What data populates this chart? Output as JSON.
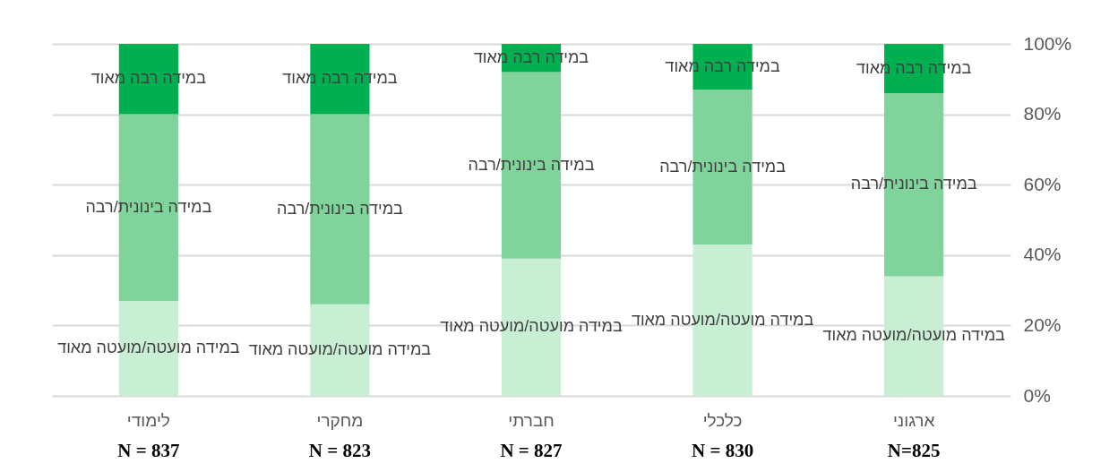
{
  "chart_data": {
    "type": "bar",
    "stacked": true,
    "categories": [
      "לימודי",
      "מחקרי",
      "חברתי",
      "כלכלי",
      "ארגוני"
    ],
    "series": [
      {
        "name": "במידה מועטה/מועטה מאוד",
        "color": "#c8eed4",
        "values": [
          27,
          26,
          39,
          43,
          34
        ]
      },
      {
        "name": "במידה בינונית/רבה",
        "color": "#7fd39b",
        "values": [
          53,
          54,
          53,
          44,
          52
        ]
      },
      {
        "name": "במידה רבה מאוד",
        "color": "#00b050",
        "values": [
          20,
          20,
          8,
          13,
          14
        ]
      }
    ],
    "ylim": [
      0,
      100
    ],
    "yticks": [
      {
        "value": 0,
        "label": "0%"
      },
      {
        "value": 20,
        "label": "20%"
      },
      {
        "value": 40,
        "label": "40%"
      },
      {
        "value": 60,
        "label": "60%"
      },
      {
        "value": 80,
        "label": "80%"
      },
      {
        "value": 100,
        "label": "100%"
      }
    ],
    "grid": "y",
    "legend": false,
    "annotations": [
      "N = 837",
      "N = 823",
      "N = 827",
      "N = 830",
      "N=825"
    ]
  }
}
